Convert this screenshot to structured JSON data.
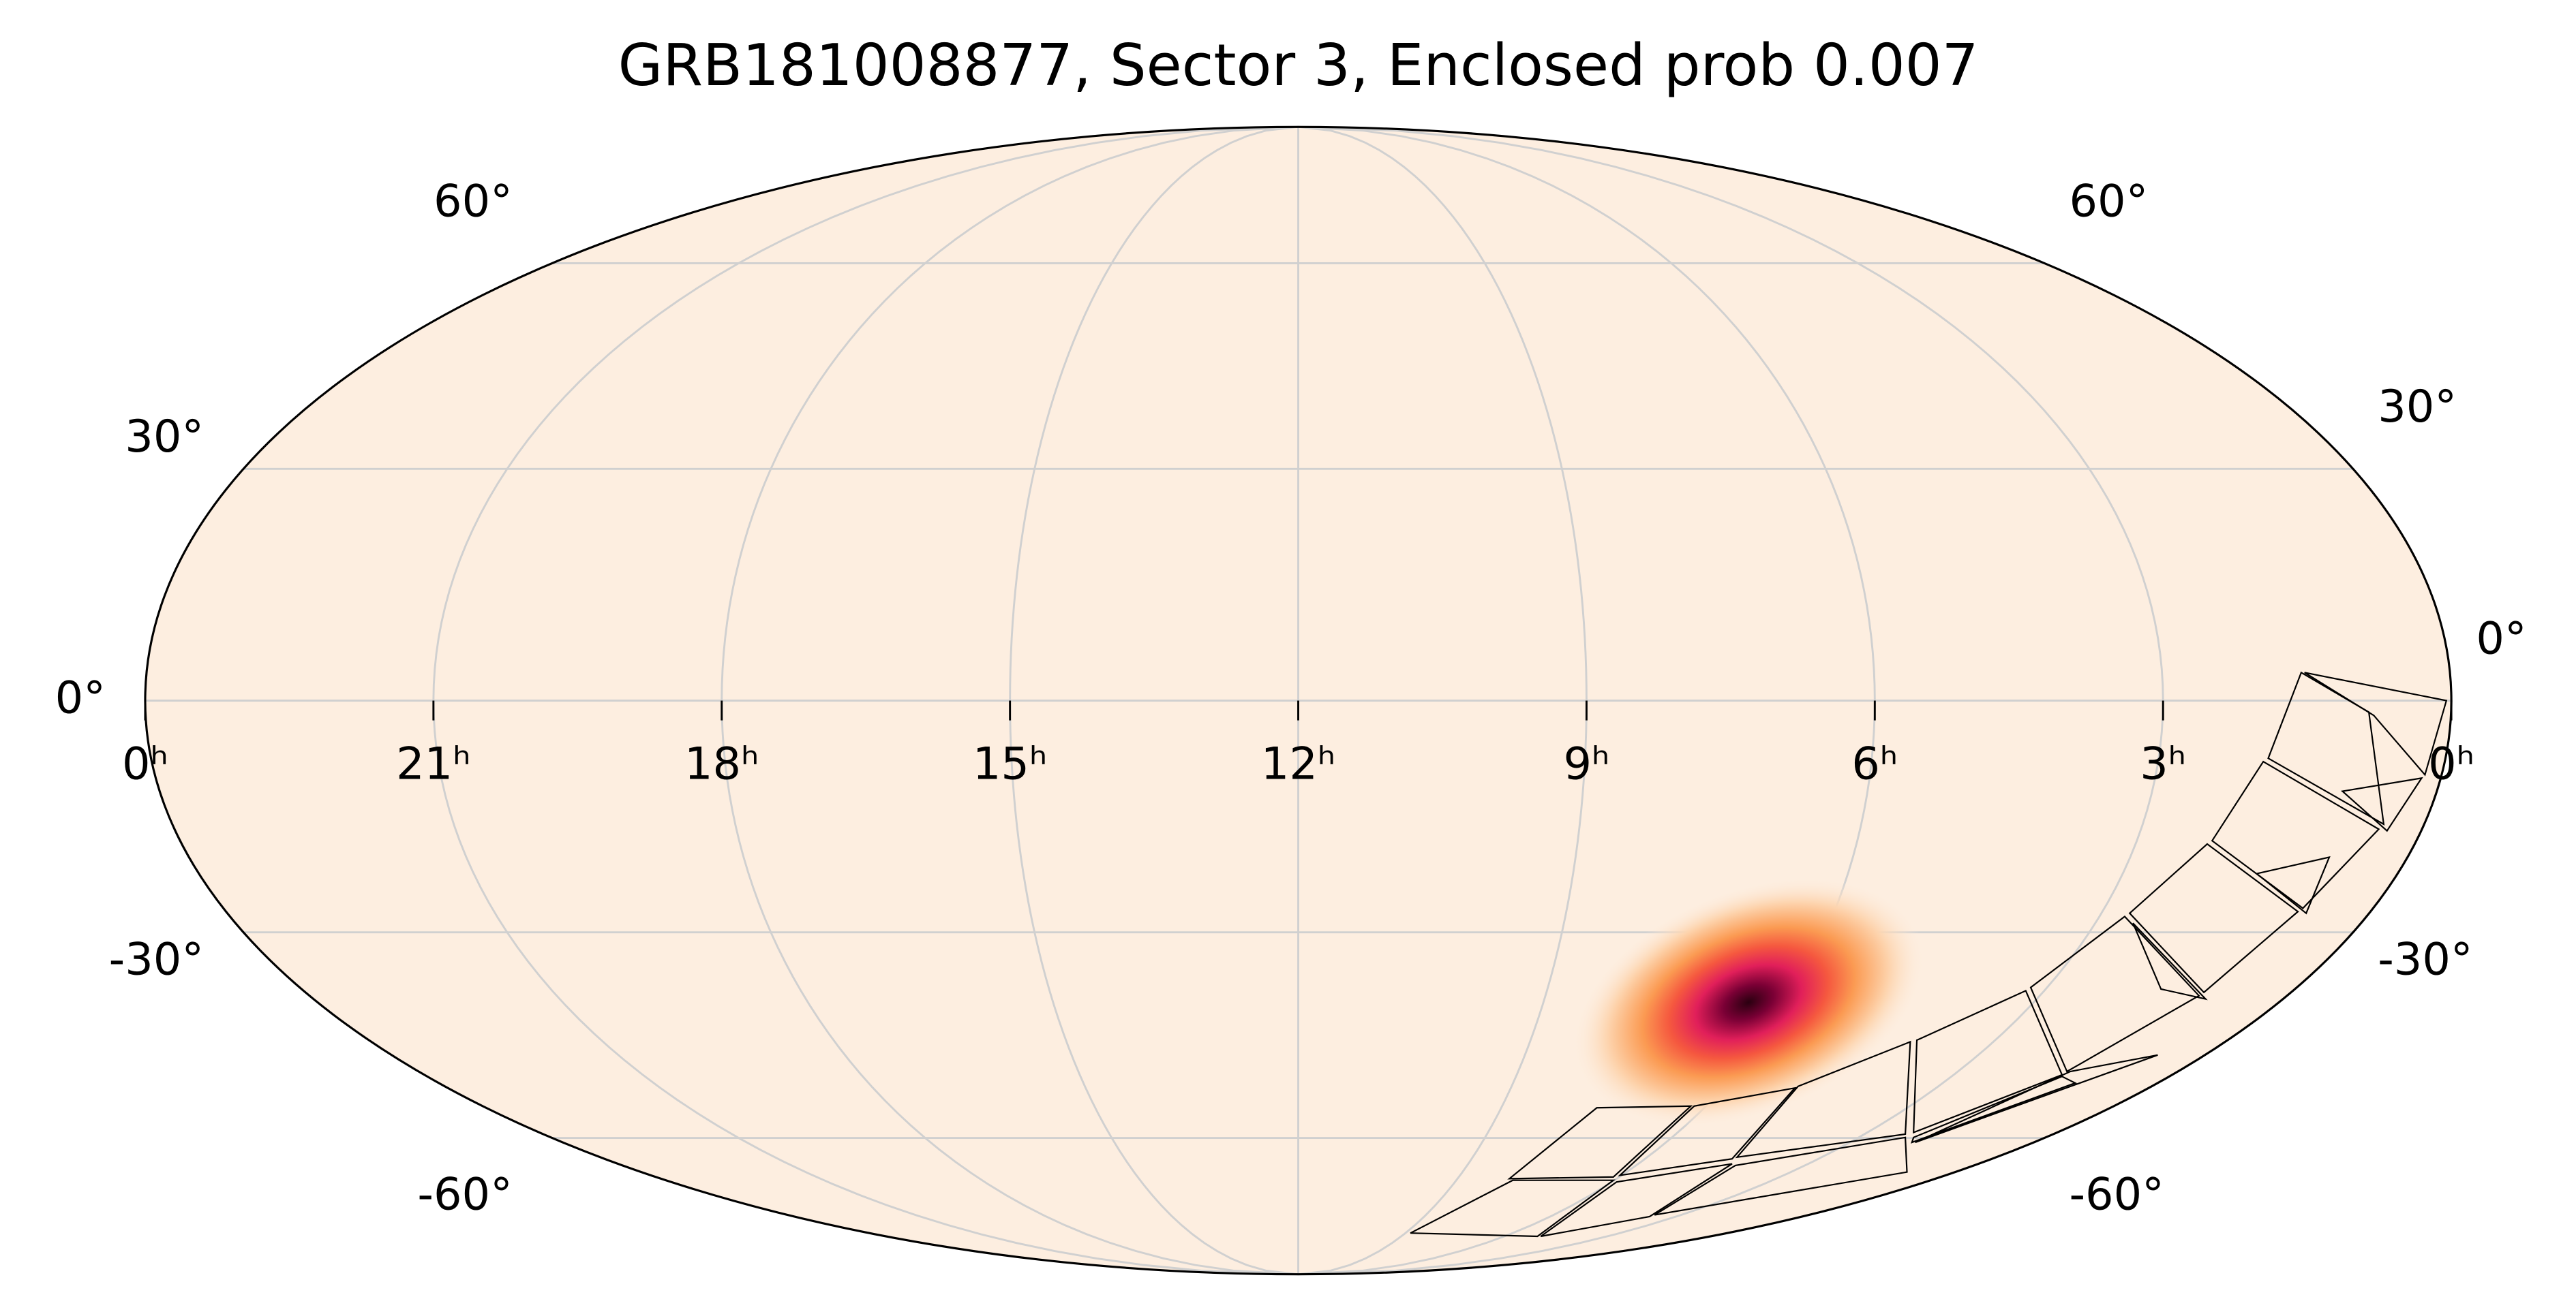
{
  "chart_data": {
    "type": "mollweide",
    "title": "GRB181008877, Sector 3, Enclosed prob 0.007",
    "xlim": [
      24,
      0
    ],
    "xticks": [
      {
        "value": 24,
        "label": "0ʰ"
      },
      {
        "value": 21,
        "label": "21ʰ"
      },
      {
        "value": 18,
        "label": "18ʰ"
      },
      {
        "value": 15,
        "label": "15ʰ"
      },
      {
        "value": 12,
        "label": "12ʰ"
      },
      {
        "value": 9,
        "label": "9ʰ"
      },
      {
        "value": 6,
        "label": "6ʰ"
      },
      {
        "value": 3,
        "label": "3ʰ"
      },
      {
        "value": 0,
        "label": "0ʰ"
      }
    ],
    "ylim": [
      -90,
      90
    ],
    "yticks": [
      {
        "value": -60,
        "label": "-60°"
      },
      {
        "value": -30,
        "label": "-30°"
      },
      {
        "value": 0,
        "label": "0°"
      },
      {
        "value": 30,
        "label": "30°"
      },
      {
        "value": 60,
        "label": "60°"
      }
    ],
    "grid": true
  }
}
